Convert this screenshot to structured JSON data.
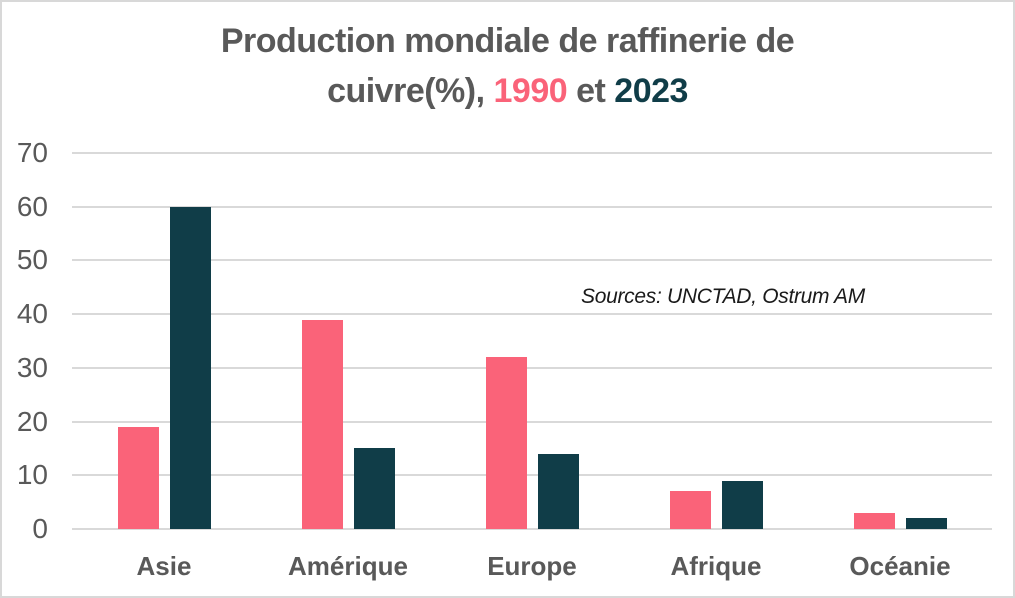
{
  "title": {
    "line1": "Production mondiale de raffinerie de",
    "line2_prefix": "cuivre(%), ",
    "year1": "1990",
    "line2_middle": " et ",
    "year2": "2023"
  },
  "annotation": "Sources: UNCTAD, Ostrum AM",
  "colors": {
    "series_1990": "#fa6379",
    "series_2023": "#103d48",
    "title_text": "#595959",
    "axis_text": "#595959",
    "gridline": "#d9d9d9",
    "frame_border": "#d8d8d8"
  },
  "chart_data": {
    "type": "bar",
    "title": "Production mondiale de raffinerie de cuivre(%), 1990 et 2023",
    "categories": [
      "Asie",
      "Amérique",
      "Europe",
      "Afrique",
      "Océanie"
    ],
    "series": [
      {
        "name": "1990",
        "color": "#fa6379",
        "values": [
          19,
          39,
          32,
          7,
          3
        ]
      },
      {
        "name": "2023",
        "color": "#103d48",
        "values": [
          60,
          15,
          14,
          9,
          2
        ]
      }
    ],
    "xlabel": "",
    "ylabel": "",
    "ylim": [
      0,
      70
    ],
    "yticks": [
      0,
      10,
      20,
      30,
      40,
      50,
      60,
      70
    ],
    "grid": true,
    "legend_position": "none (years colored in title)",
    "annotation": "Sources: UNCTAD, Ostrum AM"
  }
}
